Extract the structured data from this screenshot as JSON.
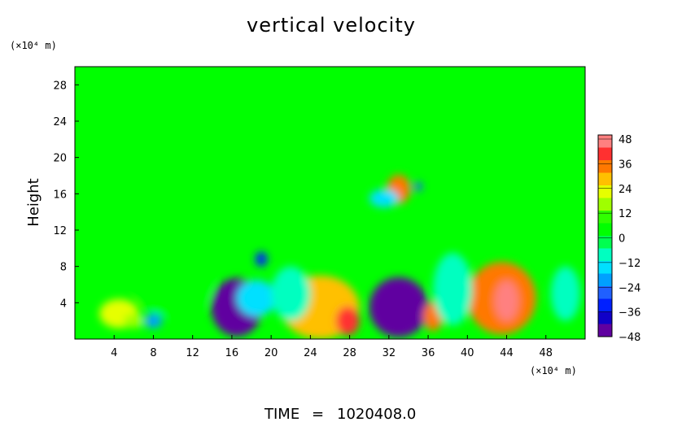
{
  "chart_data": {
    "type": "heatmap",
    "title": "vertical velocity",
    "ylabel": "Height",
    "y_unit": "(×10⁴ m)",
    "x_unit": "(×10⁴ m)",
    "xlim": [
      0,
      52
    ],
    "ylim": [
      0,
      30
    ],
    "x_ticks": [
      "4",
      "8",
      "12",
      "16",
      "20",
      "24",
      "28",
      "32",
      "36",
      "40",
      "44",
      "48"
    ],
    "y_ticks": [
      "4",
      "8",
      "12",
      "16",
      "20",
      "24",
      "28"
    ],
    "colorbar": {
      "ticks": [
        "48",
        "36",
        "24",
        "12",
        "0",
        "−12",
        "−24",
        "−36",
        "−48"
      ],
      "colors": [
        "#ff8080",
        "#ff3030",
        "#ff7800",
        "#ffc000",
        "#e6ff00",
        "#9fff00",
        "#30ff00",
        "#00ff00",
        "#00ff50",
        "#00ffc0",
        "#00e0ff",
        "#00a0ff",
        "#2060ff",
        "#0020ff",
        "#1000c8",
        "#6000a0"
      ]
    },
    "background_color": "#00ff00",
    "features": [
      {
        "x": 4.5,
        "y": 2.8,
        "rx": 2.0,
        "ry": 1.6,
        "value": 20
      },
      {
        "x": 6.0,
        "y": 2.0,
        "rx": 1.0,
        "ry": 0.8,
        "value": 14
      },
      {
        "x": 8.0,
        "y": 2.0,
        "rx": 0.9,
        "ry": 0.8,
        "value": -22
      },
      {
        "x": 16.5,
        "y": 3.5,
        "rx": 2.6,
        "ry": 3.2,
        "value": -44
      },
      {
        "x": 18.5,
        "y": 4.5,
        "rx": 2.0,
        "ry": 2.0,
        "value": -14
      },
      {
        "x": 19.0,
        "y": 8.8,
        "rx": 0.6,
        "ry": 0.8,
        "value": -30
      },
      {
        "x": 25.0,
        "y": 3.5,
        "rx": 4.0,
        "ry": 3.5,
        "value": 30
      },
      {
        "x": 27.8,
        "y": 2.0,
        "rx": 1.2,
        "ry": 1.6,
        "value": 40
      },
      {
        "x": 33.0,
        "y": 3.5,
        "rx": 3.0,
        "ry": 3.3,
        "value": -44
      },
      {
        "x": 36.5,
        "y": 2.5,
        "rx": 1.0,
        "ry": 1.6,
        "value": 36
      },
      {
        "x": 43.5,
        "y": 4.5,
        "rx": 3.5,
        "ry": 4.0,
        "value": 34
      },
      {
        "x": 44.0,
        "y": 4.2,
        "rx": 1.2,
        "ry": 2.2,
        "value": 44
      },
      {
        "x": 33.0,
        "y": 16.5,
        "rx": 1.2,
        "ry": 1.6,
        "value": 34
      },
      {
        "x": 31.5,
        "y": 15.5,
        "rx": 1.5,
        "ry": 1.0,
        "value": -14
      },
      {
        "x": 35.0,
        "y": 16.8,
        "rx": 0.4,
        "ry": 0.5,
        "value": -24
      },
      {
        "x": 10.0,
        "y": 6.0,
        "rx": 4.0,
        "ry": 3.5,
        "value": 6
      },
      {
        "x": 22.0,
        "y": 5.0,
        "rx": 2.0,
        "ry": 3.0,
        "value": -8
      },
      {
        "x": 38.5,
        "y": 5.5,
        "rx": 2.0,
        "ry": 4.0,
        "value": -8
      },
      {
        "x": 50.0,
        "y": 5.0,
        "rx": 1.5,
        "ry": 3.0,
        "value": -8
      },
      {
        "x": 2.0,
        "y": 18.5,
        "rx": 2.0,
        "ry": 2.0,
        "value": 5
      },
      {
        "x": 12.0,
        "y": 15.0,
        "rx": 3.0,
        "ry": 3.0,
        "value": 5
      },
      {
        "x": 44.0,
        "y": 17.5,
        "rx": 5.0,
        "ry": 2.5,
        "value": 4
      }
    ]
  },
  "footer": {
    "time_label": "TIME",
    "time_eq": "=",
    "time_value": "1020408.0"
  }
}
